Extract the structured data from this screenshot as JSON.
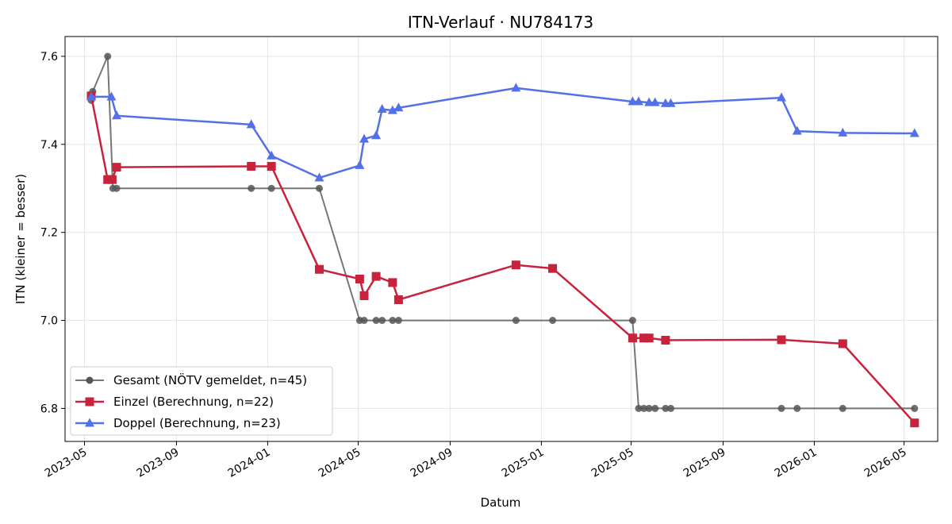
{
  "chart_data": {
    "type": "line",
    "title": "ITN-Verlauf · NU784173",
    "xlabel": "Datum",
    "ylabel": "ITN  (kleiner = besser)",
    "xlim": [
      "2023-04-05",
      "2026-06-15"
    ],
    "ylim": [
      6.725,
      7.645
    ],
    "grid": true,
    "legend_position": "lower-left",
    "x_ticks": [
      "2023-05",
      "2023-09",
      "2024-01",
      "2024-05",
      "2024-09",
      "2025-01",
      "2025-05",
      "2025-09",
      "2026-01",
      "2026-05"
    ],
    "y_ticks": [
      "6.8",
      "7.0",
      "7.2",
      "7.4",
      "7.6"
    ],
    "series": [
      {
        "name": "Gesamt (NÖTV gemeldet, n=45)",
        "color": "#555555",
        "marker": "circle",
        "points": [
          [
            "2023-05-10",
            7.5
          ],
          [
            "2023-05-12",
            7.52
          ],
          [
            "2023-06-01",
            7.6
          ],
          [
            "2023-06-08",
            7.3
          ],
          [
            "2023-06-13",
            7.3
          ],
          [
            "2023-12-10",
            7.3
          ],
          [
            "2024-01-06",
            7.3
          ],
          [
            "2024-03-10",
            7.3
          ],
          [
            "2024-05-03",
            7.0
          ],
          [
            "2024-05-09",
            7.0
          ],
          [
            "2024-05-25",
            7.0
          ],
          [
            "2024-06-02",
            7.0
          ],
          [
            "2024-06-16",
            7.0
          ],
          [
            "2024-06-24",
            7.0
          ],
          [
            "2024-11-28",
            7.0
          ],
          [
            "2025-01-16",
            7.0
          ],
          [
            "2025-05-03",
            7.0
          ],
          [
            "2025-05-11",
            6.8
          ],
          [
            "2025-05-18",
            6.8
          ],
          [
            "2025-05-25",
            6.8
          ],
          [
            "2025-06-02",
            6.8
          ],
          [
            "2025-06-16",
            6.8
          ],
          [
            "2025-06-23",
            6.8
          ],
          [
            "2025-11-18",
            6.8
          ],
          [
            "2025-12-09",
            6.8
          ],
          [
            "2026-02-08",
            6.8
          ],
          [
            "2026-05-15",
            6.8
          ]
        ]
      },
      {
        "name": "Einzel (Berechnung, n=22)",
        "color": "#c8223c",
        "marker": "square",
        "points": [
          [
            "2023-05-10",
            7.51
          ],
          [
            "2023-06-01",
            7.32
          ],
          [
            "2023-06-07",
            7.32
          ],
          [
            "2023-06-13",
            7.348
          ],
          [
            "2023-12-10",
            7.35
          ],
          [
            "2024-01-06",
            7.35
          ],
          [
            "2024-03-10",
            7.116
          ],
          [
            "2024-05-03",
            7.094
          ],
          [
            "2024-05-09",
            7.056
          ],
          [
            "2024-05-25",
            7.1
          ],
          [
            "2024-06-16",
            7.086
          ],
          [
            "2024-06-24",
            7.047
          ],
          [
            "2024-11-28",
            7.126
          ],
          [
            "2025-01-16",
            7.118
          ],
          [
            "2025-05-03",
            6.96
          ],
          [
            "2025-05-18",
            6.96
          ],
          [
            "2025-05-25",
            6.96
          ],
          [
            "2025-06-16",
            6.955
          ],
          [
            "2025-11-18",
            6.956
          ],
          [
            "2026-02-08",
            6.947
          ],
          [
            "2026-05-15",
            6.767
          ]
        ]
      },
      {
        "name": "Doppel (Berechnung, n=23)",
        "color": "#5470e8",
        "marker": "triangle",
        "points": [
          [
            "2023-05-10",
            7.508
          ],
          [
            "2023-06-06",
            7.508
          ],
          [
            "2023-06-13",
            7.465
          ],
          [
            "2023-12-10",
            7.445
          ],
          [
            "2024-01-06",
            7.374
          ],
          [
            "2024-03-10",
            7.324
          ],
          [
            "2024-05-03",
            7.352
          ],
          [
            "2024-05-09",
            7.412
          ],
          [
            "2024-05-25",
            7.42
          ],
          [
            "2024-06-02",
            7.48
          ],
          [
            "2024-06-16",
            7.477
          ],
          [
            "2024-06-24",
            7.483
          ],
          [
            "2024-11-28",
            7.528
          ],
          [
            "2025-05-03",
            7.497
          ],
          [
            "2025-05-11",
            7.497
          ],
          [
            "2025-05-25",
            7.495
          ],
          [
            "2025-06-02",
            7.495
          ],
          [
            "2025-06-16",
            7.493
          ],
          [
            "2025-06-23",
            7.493
          ],
          [
            "2025-11-18",
            7.506
          ],
          [
            "2025-12-09",
            7.43
          ],
          [
            "2026-02-08",
            7.426
          ],
          [
            "2026-05-15",
            7.425
          ]
        ]
      }
    ]
  }
}
